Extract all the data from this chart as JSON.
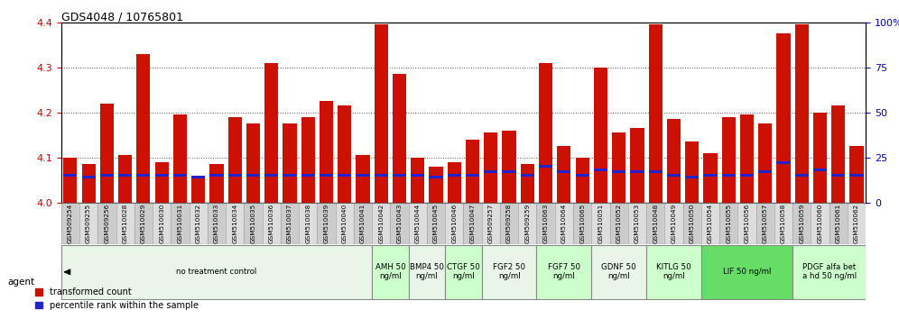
{
  "title": "GDS4048 / 10765801",
  "ylim_left": [
    4.0,
    4.4
  ],
  "ylim_right": [
    0,
    100
  ],
  "yticks_left": [
    4.0,
    4.1,
    4.2,
    4.3,
    4.4
  ],
  "yticks_right": [
    0,
    25,
    50,
    75,
    100
  ],
  "bar_color": "#cc1100",
  "blue_color": "#2222cc",
  "samples": [
    "GSM509254",
    "GSM509255",
    "GSM509256",
    "GSM510028",
    "GSM510029",
    "GSM510030",
    "GSM510031",
    "GSM510032",
    "GSM510033",
    "GSM510034",
    "GSM510035",
    "GSM510036",
    "GSM510037",
    "GSM510038",
    "GSM510039",
    "GSM510040",
    "GSM510041",
    "GSM510042",
    "GSM510043",
    "GSM510044",
    "GSM510045",
    "GSM510046",
    "GSM510047",
    "GSM509257",
    "GSM509258",
    "GSM509259",
    "GSM510063",
    "GSM510064",
    "GSM510065",
    "GSM510051",
    "GSM510052",
    "GSM510053",
    "GSM510048",
    "GSM510049",
    "GSM510050",
    "GSM510054",
    "GSM510055",
    "GSM510056",
    "GSM510057",
    "GSM510058",
    "GSM510059",
    "GSM510060",
    "GSM510061",
    "GSM510062"
  ],
  "red_heights": [
    4.1,
    4.085,
    4.22,
    4.105,
    4.33,
    4.09,
    4.195,
    4.06,
    4.085,
    4.19,
    4.175,
    4.31,
    4.175,
    4.19,
    4.225,
    4.215,
    4.105,
    4.395,
    4.285,
    4.1,
    4.08,
    4.09,
    4.14,
    4.155,
    4.16,
    4.085,
    4.31,
    4.125,
    4.1,
    4.3,
    4.155,
    4.165,
    4.395,
    4.185,
    4.135,
    4.11,
    4.19,
    4.195,
    4.175,
    4.375,
    4.395,
    4.2,
    4.215,
    4.125
  ],
  "blue_pct": [
    15,
    14,
    15,
    15,
    15,
    15,
    15,
    14,
    15,
    15,
    15,
    15,
    15,
    15,
    15,
    15,
    15,
    15,
    15,
    15,
    14,
    15,
    15,
    17,
    17,
    15,
    20,
    17,
    15,
    18,
    17,
    17,
    17,
    15,
    14,
    15,
    15,
    15,
    17,
    22,
    15,
    18,
    15,
    15
  ],
  "groups": [
    {
      "label": "no treatment control",
      "start": 0,
      "end": 17,
      "color": "#e8f5e8",
      "border": "#aaaaaa"
    },
    {
      "label": "AMH 50\nng/ml",
      "start": 17,
      "end": 19,
      "color": "#ccffcc",
      "border": "#888888"
    },
    {
      "label": "BMP4 50\nng/ml",
      "start": 19,
      "end": 21,
      "color": "#e8f5e8",
      "border": "#888888"
    },
    {
      "label": "CTGF 50\nng/ml",
      "start": 21,
      "end": 23,
      "color": "#ccffcc",
      "border": "#888888"
    },
    {
      "label": "FGF2 50\nng/ml",
      "start": 23,
      "end": 26,
      "color": "#e8f5e8",
      "border": "#888888"
    },
    {
      "label": "FGF7 50\nng/ml",
      "start": 26,
      "end": 29,
      "color": "#ccffcc",
      "border": "#888888"
    },
    {
      "label": "GDNF 50\nng/ml",
      "start": 29,
      "end": 32,
      "color": "#e8f5e8",
      "border": "#888888"
    },
    {
      "label": "KITLG 50\nng/ml",
      "start": 32,
      "end": 35,
      "color": "#ccffcc",
      "border": "#888888"
    },
    {
      "label": "LIF 50 ng/ml",
      "start": 35,
      "end": 40,
      "color": "#66dd66",
      "border": "#888888"
    },
    {
      "label": "PDGF alfa bet\na hd 50 ng/ml",
      "start": 40,
      "end": 44,
      "color": "#ccffcc",
      "border": "#888888"
    }
  ],
  "legend_red": "transformed count",
  "legend_blue": "percentile rank within the sample",
  "tick_color_left": "#cc0000",
  "tick_color_right": "#0000cc",
  "grid_color": "#555555",
  "label_bg_even": "#cccccc",
  "label_bg_odd": "#dddddd"
}
